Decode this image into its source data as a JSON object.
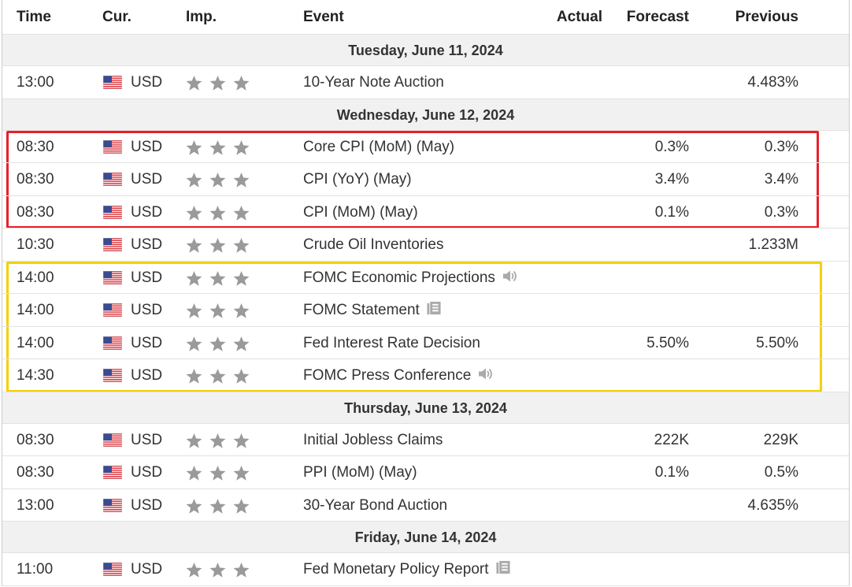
{
  "header": {
    "columns": [
      "Time",
      "Cur.",
      "Imp.",
      "Event",
      "Actual",
      "Forecast",
      "Previous"
    ]
  },
  "days": [
    {
      "date": "Tuesday, June 11, 2024",
      "events": [
        {
          "time": "13:00",
          "currency": "USD",
          "event": "10-Year Note Auction",
          "previous": "4.483%"
        }
      ]
    },
    {
      "date": "Wednesday, June 12, 2024",
      "events": [
        {
          "time": "08:30",
          "currency": "USD",
          "event": "Core CPI (MoM) (May)",
          "forecast": "0.3%",
          "previous": "0.3%"
        },
        {
          "time": "08:30",
          "currency": "USD",
          "event": "CPI (YoY) (May)",
          "forecast": "3.4%",
          "previous": "3.4%"
        },
        {
          "time": "08:30",
          "currency": "USD",
          "event": "CPI (MoM) (May)",
          "forecast": "0.1%",
          "previous": "0.3%"
        },
        {
          "time": "10:30",
          "currency": "USD",
          "event": "Crude Oil Inventories",
          "previous": "1.233M"
        },
        {
          "time": "14:00",
          "currency": "USD",
          "event": "FOMC Economic Projections"
        },
        {
          "time": "14:00",
          "currency": "USD",
          "event": "FOMC Statement"
        },
        {
          "time": "14:00",
          "currency": "USD",
          "event": "Fed Interest Rate Decision",
          "forecast": "5.50%",
          "previous": "5.50%"
        },
        {
          "time": "14:30",
          "currency": "USD",
          "event": "FOMC Press Conference"
        }
      ]
    },
    {
      "date": "Thursday, June 13, 2024",
      "events": [
        {
          "time": "08:30",
          "currency": "USD",
          "event": "Initial Jobless Claims",
          "forecast": "222K",
          "previous": "229K"
        },
        {
          "time": "08:30",
          "currency": "USD",
          "event": "PPI (MoM) (May)",
          "forecast": "0.1%",
          "previous": "0.5%"
        },
        {
          "time": "13:00",
          "currency": "USD",
          "event": "30-Year Bond Auction",
          "previous": "4.635%"
        }
      ]
    },
    {
      "date": "Friday, June 14, 2024",
      "events": [
        {
          "time": "11:00",
          "currency": "USD",
          "event": "Fed Monetary Policy Report"
        }
      ]
    }
  ]
}
